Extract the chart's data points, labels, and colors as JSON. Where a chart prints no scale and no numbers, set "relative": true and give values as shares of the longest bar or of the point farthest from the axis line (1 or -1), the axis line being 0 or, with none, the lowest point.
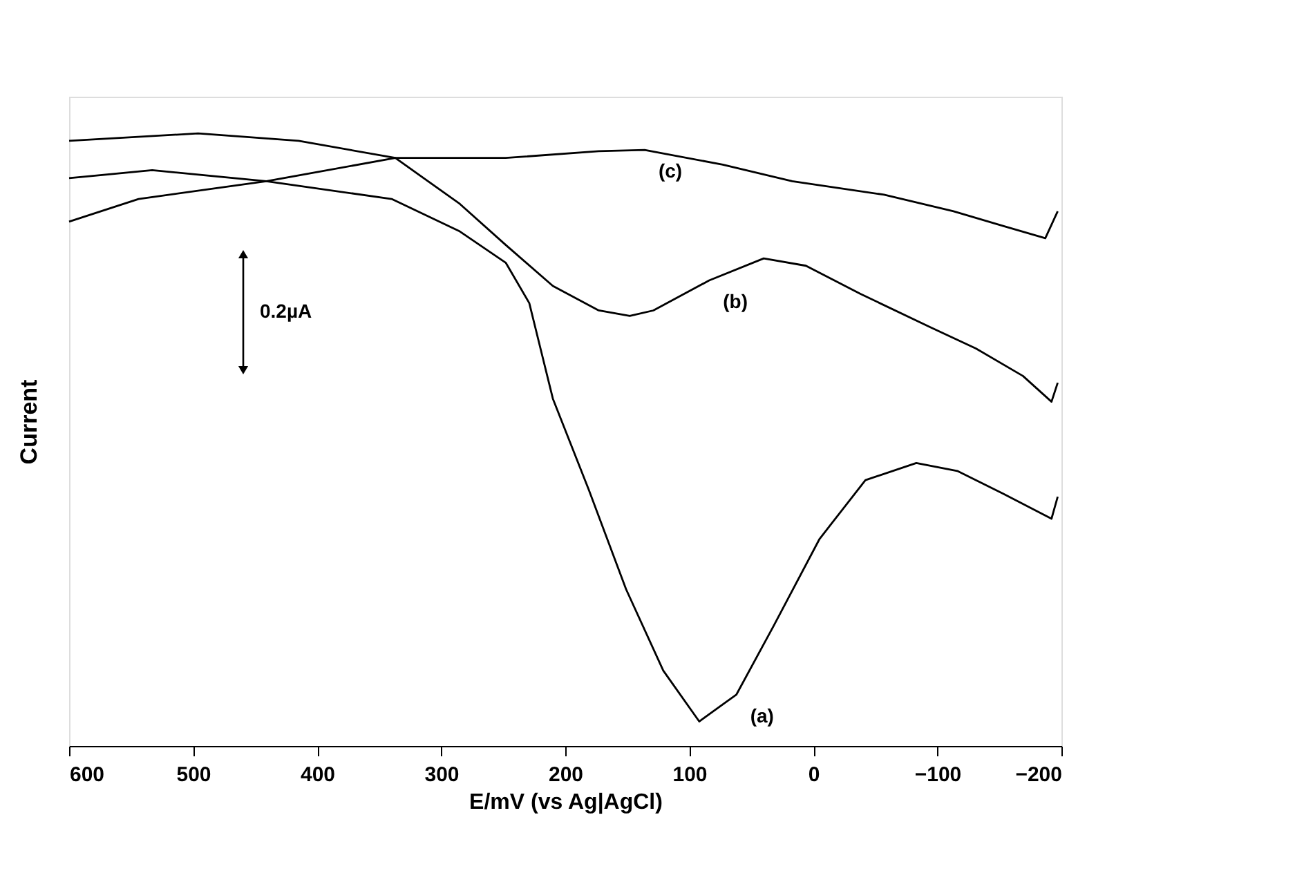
{
  "chart_data": {
    "type": "line",
    "relative": true,
    "xlabel": "E/mV (vs Ag|AgCl)",
    "ylabel": "Current",
    "xlim": [
      600,
      -200
    ],
    "xticks": [
      600,
      500,
      400,
      300,
      200,
      100,
      0,
      -100,
      -200
    ],
    "marker": "none",
    "line_style": "solid",
    "series": [
      {
        "color": "#000000",
        "x": [
          600,
          533,
          441,
          340,
          285,
          248,
          229,
          210,
          181,
          151,
          121,
          92,
          62,
          32,
          -5,
          -42,
          -83,
          -116,
          -153,
          -192,
          -197
        ],
        "values": [
          0.927,
          0.94,
          0.922,
          0.893,
          0.84,
          0.789,
          0.723,
          0.567,
          0.418,
          0.256,
          0.123,
          0.04,
          0.084,
          0.196,
          0.338,
          0.434,
          0.462,
          0.449,
          0.412,
          0.371,
          0.407
        ]
      },
      {
        "color": "#000000",
        "x": [
          600,
          496,
          415,
          337,
          285,
          248,
          210,
          173,
          148,
          129,
          84,
          40,
          6,
          -38,
          -94,
          -131,
          -169,
          -192,
          -197
        ],
        "values": [
          0.988,
          1.0,
          0.988,
          0.96,
          0.885,
          0.818,
          0.751,
          0.711,
          0.702,
          0.711,
          0.76,
          0.796,
          0.784,
          0.738,
          0.684,
          0.649,
          0.604,
          0.562,
          0.593
        ]
      },
      {
        "color": "#000000",
        "x": [
          600,
          544,
          441,
          337,
          248,
          173,
          136,
          73,
          17,
          -57,
          -113,
          -153,
          -187,
          -197
        ],
        "values": [
          0.856,
          0.893,
          0.922,
          0.96,
          0.96,
          0.971,
          0.973,
          0.949,
          0.922,
          0.9,
          0.873,
          0.849,
          0.829,
          0.873
        ]
      }
    ],
    "annotations": [
      {
        "text": "(a)",
        "x": 62,
        "y": 0.084
      },
      {
        "text": "(b)",
        "x": 84,
        "y": 0.76
      },
      {
        "text": "(c)",
        "x": 136,
        "y": 0.973
      },
      "0.2µA"
    ]
  }
}
